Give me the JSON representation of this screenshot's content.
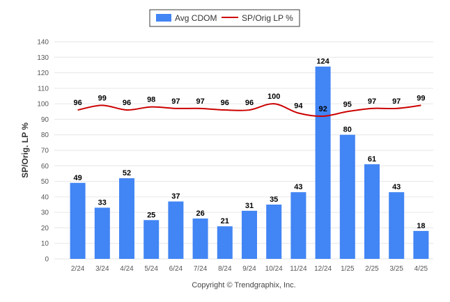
{
  "chart_data": {
    "type": "bar",
    "categories": [
      "2/24",
      "3/24",
      "4/24",
      "5/24",
      "6/24",
      "7/24",
      "8/24",
      "9/24",
      "10/24",
      "11/24",
      "12/24",
      "1/25",
      "2/25",
      "3/25",
      "4/25"
    ],
    "series": [
      {
        "name": "Avg CDOM",
        "kind": "bar",
        "color": "#4285f4",
        "values": [
          49,
          33,
          52,
          25,
          37,
          26,
          21,
          31,
          35,
          43,
          124,
          80,
          61,
          43,
          18
        ]
      },
      {
        "name": "SP/Orig LP %",
        "kind": "line",
        "color": "#cc0000",
        "values": [
          96,
          99,
          96,
          98,
          97,
          97,
          96,
          96,
          100,
          94,
          92,
          95,
          97,
          97,
          99
        ]
      }
    ],
    "ylabel": "SP/Orig. LP %",
    "ylim": [
      0,
      140
    ],
    "yticks": [
      0,
      10,
      20,
      30,
      40,
      50,
      60,
      70,
      80,
      90,
      100,
      110,
      120,
      130,
      140
    ],
    "grid": true,
    "legend_position": "top-center"
  },
  "footer": {
    "copyright": "Copyright © Trendgraphix, Inc."
  }
}
